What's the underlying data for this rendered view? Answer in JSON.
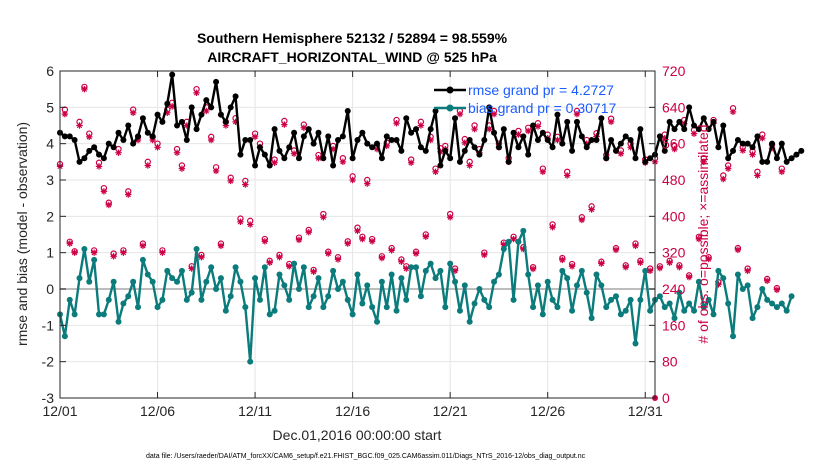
{
  "chart_data": {
    "type": "line",
    "title": "Southern Hemisphere 52132 / 52894 = 98.559%",
    "subtitle": "AIRCRAFT_HORIZONTAL_WIND @ 525 hPa",
    "xlabel": "Dec.01,2016 00:00:00 start",
    "ylabel": "rmse and bias (model - observation)",
    "ylabel_right": "# of obs: o=possible; ×=assimilated",
    "footer": "data file: /Users/raeder/DAI/ATM_forcXX/CAM6_setup/f.e21.FHIST_BGC.f09_025.CAM6assim.011/Diags_NTrS_2016-12/obs_diag_output.nc",
    "xlim": [
      0,
      30.5
    ],
    "ylim": [
      -3,
      6
    ],
    "ylim_right": [
      0,
      720
    ],
    "x_tick_values": [
      0,
      5,
      10,
      15,
      20,
      25,
      30
    ],
    "x_tick_labels": [
      "12/01",
      "12/06",
      "12/11",
      "12/16",
      "12/21",
      "12/26",
      "12/31"
    ],
    "y_ticks": [
      -3,
      -2,
      -1,
      0,
      1,
      2,
      3,
      4,
      5,
      6
    ],
    "y_ticks_right": [
      0,
      80,
      160,
      240,
      320,
      400,
      480,
      560,
      640,
      720
    ],
    "grid": true,
    "legend_position": "top-right",
    "x_step_days": 0.25,
    "series": [
      {
        "name": "rmse grand pr = 4.2727",
        "color": "#000000",
        "axis": "left",
        "values": [
          4.3,
          4.2,
          4.2,
          4.1,
          3.5,
          3.6,
          3.8,
          3.9,
          3.7,
          3.6,
          4.0,
          3.9,
          4.3,
          4.1,
          4.5,
          4.0,
          4.2,
          4.7,
          4.3,
          4.2,
          4.8,
          4.6,
          5.1,
          5.9,
          4.5,
          4.6,
          4.1,
          5.0,
          4.4,
          4.8,
          5.2,
          5.0,
          5.7,
          4.8,
          4.6,
          5.0,
          5.3,
          3.7,
          4.1,
          4.1,
          3.4,
          3.9,
          3.7,
          3.4,
          4.4,
          3.8,
          3.6,
          3.9,
          4.3,
          3.6,
          4.2,
          4.4,
          4.0,
          4.3,
          3.6,
          4.2,
          3.4,
          4.1,
          4.2,
          4.9,
          3.6,
          4.1,
          4.3,
          4.0,
          3.9,
          4.0,
          3.6,
          4.2,
          4.1,
          4.1,
          3.8,
          4.7,
          4.3,
          4.4,
          3.9,
          3.8,
          4.4,
          4.9,
          3.4,
          3.8,
          3.6,
          4.7,
          3.5,
          3.8,
          4.1,
          3.9,
          3.7,
          4.1,
          5.0,
          4.3,
          3.9,
          4.4,
          3.5,
          4.3,
          3.9,
          4.2,
          3.7,
          4.5,
          4.1,
          4.3,
          4.1,
          3.9,
          4.8,
          4.0,
          4.6,
          3.8,
          4.6,
          4.2,
          3.9,
          4.1,
          4.1,
          4.7,
          3.6,
          4.1,
          3.8,
          4.0,
          4.2,
          4.1,
          3.6,
          4.4,
          3.5,
          3.6,
          3.7,
          4.2,
          3.8,
          4.6,
          4.4,
          4.6,
          4.4,
          5.0,
          4.5,
          4.4,
          4.7,
          4.4,
          4.6,
          3.9,
          4.5,
          3.6,
          3.8,
          4.1,
          4.0,
          4.0,
          3.9,
          4.2,
          3.5,
          3.5,
          4.0,
          3.6,
          4.0,
          3.5,
          3.6,
          3.7,
          3.8
        ]
      },
      {
        "name": "bias grand pr = 0.30717",
        "color": "#0b7b7b",
        "axis": "left",
        "values": [
          -0.7,
          -1.3,
          -0.3,
          -0.7,
          0.3,
          1.1,
          0.2,
          0.8,
          -0.7,
          -0.7,
          -0.3,
          0.2,
          -0.9,
          -0.4,
          -0.2,
          0.2,
          -0.5,
          0.8,
          0.4,
          0.2,
          -0.5,
          -0.3,
          0.5,
          0.3,
          0.2,
          0.5,
          -0.3,
          -0.1,
          1.1,
          -0.3,
          0.2,
          0.6,
          0.0,
          0.3,
          -0.6,
          -0.2,
          0.6,
          0.2,
          -0.5,
          -2.0,
          0.3,
          -0.3,
          0.6,
          -0.7,
          -0.6,
          0.4,
          0.1,
          -0.3,
          0.7,
          0.0,
          0.6,
          -0.5,
          -0.2,
          0.3,
          -0.5,
          -0.2,
          0.5,
          0.0,
          0.2,
          -0.3,
          -0.7,
          0.4,
          -0.4,
          0.1,
          -0.5,
          -0.9,
          0.2,
          -0.5,
          0.4,
          -0.6,
          0.3,
          -0.3,
          0.6,
          0.6,
          -0.2,
          0.5,
          0.7,
          0.3,
          0.5,
          -0.5,
          0.7,
          0.2,
          -0.6,
          0.1,
          -0.9,
          -0.4,
          0.0,
          -0.3,
          -0.5,
          0.2,
          0.4,
          1.1,
          1.3,
          -0.3,
          1.3,
          1.6,
          0.4,
          -0.5,
          0.1,
          -0.7,
          0.2,
          -0.3,
          -0.5,
          0.5,
          0.3,
          -0.6,
          0.1,
          0.5,
          -0.1,
          -0.8,
          0.4,
          0.1,
          -0.5,
          -0.3,
          -0.2,
          -0.7,
          -0.6,
          -0.3,
          -1.5,
          -0.3,
          0.5,
          -0.6,
          -0.3,
          -0.2,
          -0.5,
          -0.4,
          -0.8,
          -0.1,
          -0.6,
          -0.4,
          -0.6,
          0.2,
          -0.5,
          -0.3,
          -0.7,
          0.5,
          0.3,
          -0.4,
          -1.3,
          0.4,
          0.0,
          0.1,
          -0.8,
          -0.5,
          0.0,
          -0.3,
          -0.4,
          -0.5,
          -0.4,
          -0.6,
          -0.2
        ]
      },
      {
        "name": "possible",
        "marker": "o",
        "color": "#cc0044",
        "axis": "right",
        "values": [
          515,
          635,
          344,
          323,
          608,
          685,
          582,
          325,
          518,
          462,
          430,
          318,
          548,
          325,
          455,
          635,
          575,
          340,
          520,
          575,
          560,
          325,
          635,
          650,
          548,
          512,
          608,
          290,
          680,
          315,
          640,
          575,
          508,
          340,
          608,
          485,
          616,
          395,
          478,
          390,
          582,
          560,
          350,
          302,
          525,
          315,
          610,
          295,
          545,
          353,
          602,
          370,
          282,
          535,
          405,
          322,
          555,
          310,
          528,
          345,
          488,
          375,
          355,
          480,
          350,
          555,
          312,
          562,
          330,
          612,
          305,
          290,
          525,
          322,
          608,
          360,
          575,
          505,
          550,
          555,
          405,
          285,
          632,
          570,
          520,
          600,
          548,
          320,
          600,
          632,
          560,
          342,
          528,
          355,
          588,
          332,
          595,
          288,
          605,
          505,
          580,
          382,
          575,
          308,
          498,
          295,
          632,
          398,
          568,
          422,
          583,
          300,
          535,
          615,
          330,
          545,
          292,
          560,
          340,
          302,
          525,
          285,
          528,
          290,
          580,
          302,
          555,
          292,
          612,
          270,
          590,
          355,
          528,
          310,
          612,
          255,
          490,
          512,
          638,
          330,
          552,
          285,
          543,
          498,
          580,
          262,
          558,
          242,
          505
        ]
      },
      {
        "name": "assimilated",
        "marker": "x",
        "color": "#cc0044",
        "axis": "right",
        "values": [
          510,
          625,
          340,
          320,
          600,
          680,
          575,
          320,
          510,
          455,
          425,
          312,
          540,
          320,
          448,
          628,
          568,
          335,
          512,
          568,
          552,
          320,
          628,
          642,
          540,
          505,
          600,
          285,
          672,
          310,
          632,
          568,
          500,
          335,
          600,
          478,
          608,
          388,
          470,
          382,
          575,
          552,
          345,
          298,
          518,
          310,
          602,
          290,
          538,
          348,
          595,
          365,
          278,
          528,
          398,
          318,
          548,
          305,
          520,
          340,
          480,
          368,
          350,
          472,
          345,
          548,
          308,
          555,
          325,
          605,
          300,
          285,
          518,
          318,
          600,
          355,
          568,
          498,
          542,
          548,
          398,
          280,
          625,
          562,
          512,
          592,
          540,
          315,
          592,
          625,
          552,
          338,
          520,
          350,
          580,
          328,
          588,
          284,
          598,
          498,
          572,
          376,
          568,
          304,
          490,
          290,
          625,
          392,
          560,
          415,
          576,
          296,
          528,
          608,
          326,
          538,
          288,
          552,
          335,
          298,
          518,
          280,
          520,
          286,
          572,
          298,
          548,
          288,
          604,
          266,
          582,
          350,
          520,
          306,
          605,
          250,
          482,
          505,
          630,
          326,
          545,
          280,
          536,
          490,
          572,
          258,
          550,
          238,
          498
        ]
      }
    ]
  }
}
